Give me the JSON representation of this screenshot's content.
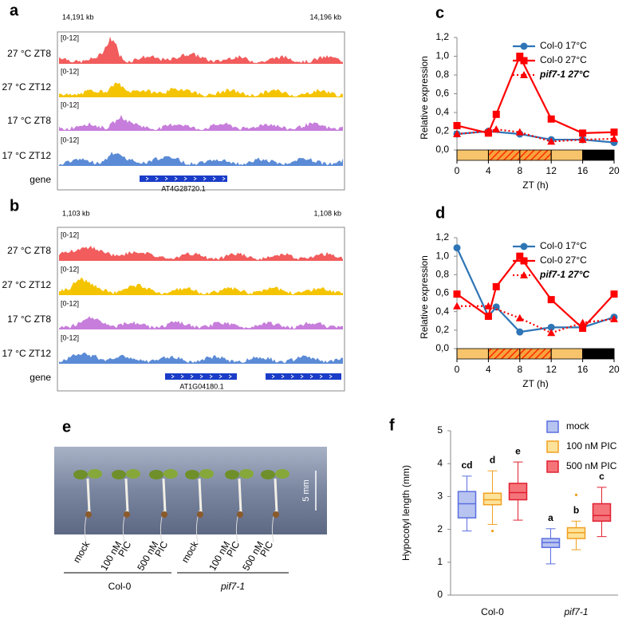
{
  "panels": {
    "a": {
      "letter": "a",
      "coords": [
        "14,191 kb",
        "14,196 kb"
      ],
      "tracks": [
        {
          "scale": "[0-12]",
          "label": "27 °C  ZT8"
        },
        {
          "scale": "[0-12]",
          "label": "27 °C  ZT12"
        },
        {
          "scale": "[0-12]",
          "label": "17 °C  ZT8"
        },
        {
          "scale": "[0-12]",
          "label": "17 °C  ZT12"
        }
      ],
      "gene_label": "gene",
      "gene": "AT4G28720.1"
    },
    "b": {
      "letter": "b",
      "coords": [
        "1,103 kb",
        "1,108 kb"
      ],
      "tracks": [
        {
          "scale": "[0-12]",
          "label": "27 °C  ZT8"
        },
        {
          "scale": "[0-12]",
          "label": "27 °C  ZT12"
        },
        {
          "scale": "[0-12]",
          "label": "17 °C  ZT8"
        },
        {
          "scale": "[0-12]",
          "label": "17 °C  ZT12"
        }
      ],
      "gene_label": "gene",
      "gene": "AT1G04180.1"
    },
    "e": {
      "letter": "e",
      "scale_bar": "5 mm",
      "labels": [
        {
          "lines": [
            "mock"
          ]
        },
        {
          "lines": [
            "100 nM",
            "PIC"
          ]
        },
        {
          "lines": [
            "500 nM",
            "PIC"
          ]
        },
        {
          "lines": [
            "mock"
          ]
        },
        {
          "lines": [
            "100 nM",
            "PIC"
          ]
        },
        {
          "lines": [
            "500 nM",
            "PIC"
          ]
        }
      ],
      "groups": [
        "Col-0",
        "pif7-1"
      ]
    }
  },
  "chart_data": [
    {
      "type": "line",
      "letter": "c",
      "y_label": "Relative expression",
      "x_label": "ZT (h)",
      "xlim": [
        0,
        20
      ],
      "xticks": [
        0,
        4,
        8,
        12,
        16,
        20
      ],
      "ylim": [
        0,
        1.2
      ],
      "yticks": [
        {
          "value": 0,
          "label": "0,0"
        },
        {
          "value": 0.2,
          "label": "0,2"
        },
        {
          "value": 0.4,
          "label": "0,4"
        },
        {
          "value": 0.6,
          "label": "0,6"
        },
        {
          "value": 0.8,
          "label": "0,8"
        },
        {
          "value": 1.0,
          "label": "1,0"
        },
        {
          "value": 1.2,
          "label": "1,2"
        }
      ],
      "strip": [
        {
          "from": 0,
          "to": 4,
          "fill": "#f7c46c"
        },
        {
          "from": 4,
          "to": 12,
          "fill": "hatch"
        },
        {
          "from": 12,
          "to": 16,
          "fill": "#f7c46c"
        },
        {
          "from": 16,
          "to": 20,
          "fill": "#000000"
        }
      ],
      "series": [
        {
          "name": "Col-0 17°C",
          "color": "#2e75b6",
          "marker": "circle",
          "line_style": "solid",
          "x": [
            0,
            4,
            8,
            12,
            16,
            20
          ],
          "values": [
            0.17,
            0.2,
            0.17,
            0.11,
            0.11,
            0.08
          ]
        },
        {
          "name": "Col-0 27°C",
          "color": "#ff0000",
          "marker": "square",
          "line_style": "solid",
          "x": [
            0,
            4,
            5,
            8,
            12,
            16,
            20
          ],
          "values": [
            0.26,
            0.18,
            0.38,
            1.0,
            0.33,
            0.18,
            0.19
          ]
        },
        {
          "name": "pif7-1 27°C",
          "color": "#ff0000",
          "marker": "triangle",
          "line_style": "dotted",
          "italic": true,
          "x": [
            0,
            4,
            5,
            8,
            12,
            16,
            20
          ],
          "values": [
            0.17,
            0.2,
            0.22,
            0.19,
            0.09,
            0.11,
            0.12
          ]
        }
      ]
    },
    {
      "type": "line",
      "letter": "d",
      "y_label": "Relative expression",
      "x_label": "ZT (h)",
      "xlim": [
        0,
        20
      ],
      "xticks": [
        0,
        4,
        8,
        12,
        16,
        20
      ],
      "ylim": [
        0,
        1.2
      ],
      "yticks": [
        {
          "value": 0,
          "label": "0,0"
        },
        {
          "value": 0.2,
          "label": "0,2"
        },
        {
          "value": 0.4,
          "label": "0,4"
        },
        {
          "value": 0.6,
          "label": "0,6"
        },
        {
          "value": 0.8,
          "label": "0,8"
        },
        {
          "value": 1.0,
          "label": "1,0"
        },
        {
          "value": 1.2,
          "label": "1,2"
        }
      ],
      "strip": [
        {
          "from": 0,
          "to": 4,
          "fill": "#f7c46c"
        },
        {
          "from": 4,
          "to": 12,
          "fill": "hatch"
        },
        {
          "from": 12,
          "to": 16,
          "fill": "#f7c46c"
        },
        {
          "from": 16,
          "to": 20,
          "fill": "#000000"
        }
      ],
      "series": [
        {
          "name": "Col-0 17°C",
          "color": "#2e75b6",
          "marker": "circle",
          "line_style": "solid",
          "x": [
            0,
            4,
            5,
            8,
            12,
            16,
            20
          ],
          "values": [
            1.09,
            0.35,
            0.45,
            0.18,
            0.23,
            0.23,
            0.34
          ]
        },
        {
          "name": "Col-0 27°C",
          "color": "#ff0000",
          "marker": "square",
          "line_style": "solid",
          "x": [
            0,
            4,
            5,
            8,
            12,
            16,
            20
          ],
          "values": [
            0.59,
            0.35,
            0.67,
            1.0,
            0.53,
            0.22,
            0.59
          ]
        },
        {
          "name": "pif7-1 27°C",
          "color": "#ff0000",
          "marker": "triangle",
          "line_style": "dotted",
          "italic": true,
          "x": [
            0,
            4,
            8,
            12,
            16,
            20
          ],
          "values": [
            0.46,
            0.46,
            0.33,
            0.17,
            0.28,
            0.32
          ]
        }
      ]
    },
    {
      "type": "box",
      "letter": "f",
      "y_label": "Hypocotyl length (mm)",
      "categories": [
        "Col-0",
        "pif7-1"
      ],
      "category_styles": [
        "normal",
        "italic"
      ],
      "ylim": [
        0,
        5
      ],
      "yticks": [
        0,
        1,
        2,
        3,
        4,
        5
      ],
      "series": [
        {
          "name": "mock",
          "color": "#5a6ee0",
          "fill": "#b8c4f0",
          "boxes": [
            {
              "min": 1.95,
              "q1": 2.35,
              "median": 2.78,
              "q3": 3.15,
              "max": 3.62,
              "outliers": [],
              "group": "cd"
            },
            {
              "min": 0.95,
              "q1": 1.45,
              "median": 1.6,
              "q3": 1.72,
              "max": 2.02,
              "outliers": [],
              "group": "a"
            }
          ]
        },
        {
          "name": "100 nM PIC",
          "color": "#f0a020",
          "fill": "#fde29a",
          "boxes": [
            {
              "min": 2.15,
              "q1": 2.75,
              "median": 2.9,
              "q3": 3.1,
              "max": 3.78,
              "outliers": [
                1.95
              ],
              "group": "d"
            },
            {
              "min": 1.38,
              "q1": 1.72,
              "median": 1.9,
              "q3": 2.05,
              "max": 2.25,
              "outliers": [
                3.05
              ],
              "group": "b"
            }
          ]
        },
        {
          "name": "500 nM PIC",
          "color": "#e02030",
          "fill": "#f4747a",
          "boxes": [
            {
              "min": 2.28,
              "q1": 2.9,
              "median": 3.12,
              "q3": 3.4,
              "max": 4.05,
              "outliers": [],
              "group": "e"
            },
            {
              "min": 1.78,
              "q1": 2.25,
              "median": 2.42,
              "q3": 2.78,
              "max": 3.28,
              "outliers": [],
              "group": "c"
            }
          ]
        }
      ]
    }
  ]
}
